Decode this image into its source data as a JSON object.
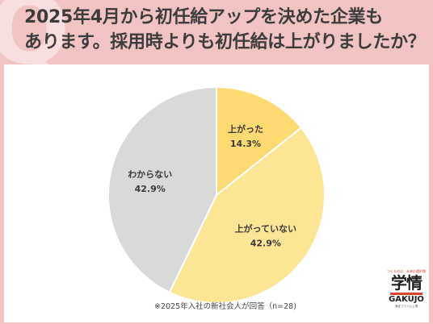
{
  "header": {
    "title_line1": "2025年4月から初任給アップを決めた企業も",
    "title_line2": "あります。採用時よりも初任給は上がりましたか？",
    "accent_color": "#f2c3c3"
  },
  "chart_data": {
    "type": "pie",
    "slices": [
      {
        "label": "上がった",
        "value": 14.3,
        "value_label": "14.3%",
        "color": "#ffd971"
      },
      {
        "label": "上がっていない",
        "value": 42.9,
        "value_label": "42.9%",
        "color": "#fde596"
      },
      {
        "label": "わからない",
        "value": 42.9,
        "value_label": "42.9%",
        "color": "#d9d9d9"
      }
    ],
    "start": "12 o'clock",
    "direction": "clockwise",
    "legend": "none",
    "footnote": "※2025年入社の新社会人が回答（n=28)"
  },
  "logo": {
    "tagline": "つくるのは、未来の選択肢",
    "mark": "学情",
    "name": "GAKUJO",
    "sub": "東証プライム上場"
  }
}
